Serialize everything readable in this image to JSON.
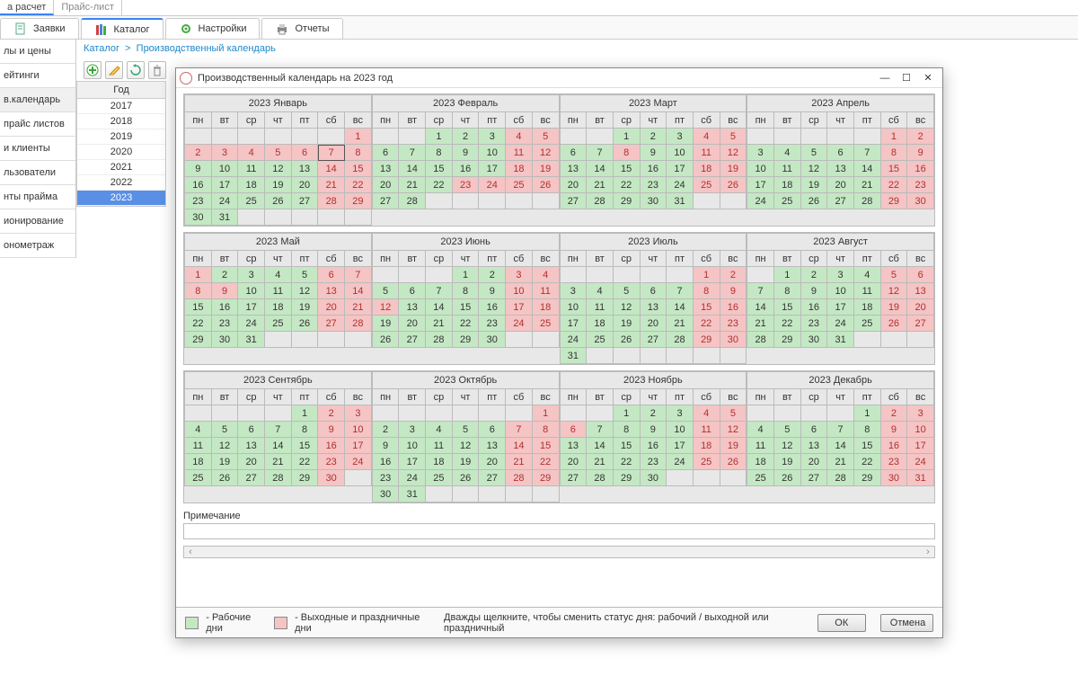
{
  "colors": {
    "work": "#c4e8c4",
    "holiday": "#f5c4c4",
    "accent": "#3b82f6",
    "selected": "#5a8fe6"
  },
  "top_tabs": [
    "а расчет",
    "Прайс-лист"
  ],
  "top_active": 0,
  "main_tabs": [
    {
      "label": "Заявки",
      "icon": "note-icon"
    },
    {
      "label": "Каталог",
      "icon": "books-icon"
    },
    {
      "label": "Настройки",
      "icon": "gear-icon"
    },
    {
      "label": "Отчеты",
      "icon": "printer-icon"
    }
  ],
  "main_active": 1,
  "sidebar": [
    "лы и цены",
    "ейтинги",
    "в.календарь",
    "прайс листов",
    "и клиенты",
    "льзователи",
    "нты прайма",
    "ионирование",
    "онометраж"
  ],
  "sidebar_active": 2,
  "breadcrumb": {
    "root": "Каталог",
    "current": "Производственный календарь"
  },
  "year_panel": {
    "header": "Год",
    "years": [
      2017,
      2018,
      2019,
      2020,
      2021,
      2022,
      2023
    ],
    "selected": 2023
  },
  "modal": {
    "title": "Производственный календарь на 2023 год",
    "note_label": "Примечание",
    "legend_work": "- Рабочие дни",
    "legend_holiday": "- Выходные и праздничные дни",
    "hint": "Дважды щелкните, чтобы сменить статус дня: рабочий / выходной или праздничный",
    "btn_ok": "ОК",
    "btn_cancel": "Отмена"
  },
  "dow": [
    "пн",
    "вт",
    "ср",
    "чт",
    "пт",
    "сб",
    "вс"
  ],
  "today": {
    "month": 0,
    "day": 7
  },
  "months": [
    {
      "title": "2023 Январь",
      "start": 6,
      "days": 31,
      "holidays": [
        1,
        2,
        3,
        4,
        5,
        6,
        7,
        8,
        14,
        15,
        21,
        22,
        28,
        29
      ]
    },
    {
      "title": "2023 Февраль",
      "start": 2,
      "days": 28,
      "holidays": [
        4,
        5,
        11,
        12,
        18,
        19,
        23,
        24,
        25,
        26
      ]
    },
    {
      "title": "2023 Март",
      "start": 2,
      "days": 31,
      "holidays": [
        4,
        5,
        8,
        11,
        12,
        18,
        19,
        25,
        26
      ]
    },
    {
      "title": "2023 Апрель",
      "start": 5,
      "days": 30,
      "holidays": [
        1,
        2,
        8,
        9,
        15,
        16,
        22,
        23,
        29,
        30
      ]
    },
    {
      "title": "2023 Май",
      "start": 0,
      "days": 31,
      "holidays": [
        1,
        6,
        7,
        8,
        9,
        13,
        14,
        20,
        21,
        27,
        28
      ]
    },
    {
      "title": "2023 Июнь",
      "start": 3,
      "days": 30,
      "holidays": [
        3,
        4,
        10,
        11,
        12,
        17,
        18,
        24,
        25
      ]
    },
    {
      "title": "2023 Июль",
      "start": 5,
      "days": 31,
      "holidays": [
        1,
        2,
        8,
        9,
        15,
        16,
        22,
        23,
        29,
        30
      ]
    },
    {
      "title": "2023 Август",
      "start": 1,
      "days": 31,
      "holidays": [
        5,
        6,
        12,
        13,
        19,
        20,
        26,
        27
      ]
    },
    {
      "title": "2023 Сентябрь",
      "start": 4,
      "days": 30,
      "holidays": [
        2,
        3,
        9,
        10,
        16,
        17,
        23,
        24,
        30
      ]
    },
    {
      "title": "2023 Октябрь",
      "start": 6,
      "days": 31,
      "holidays": [
        1,
        7,
        8,
        14,
        15,
        21,
        22,
        28,
        29
      ]
    },
    {
      "title": "2023 Ноябрь",
      "start": 2,
      "days": 30,
      "holidays": [
        4,
        5,
        6,
        11,
        12,
        18,
        19,
        25,
        26
      ]
    },
    {
      "title": "2023 Декабрь",
      "start": 4,
      "days": 31,
      "holidays": [
        2,
        3,
        9,
        10,
        16,
        17,
        23,
        24,
        30,
        31
      ]
    }
  ]
}
